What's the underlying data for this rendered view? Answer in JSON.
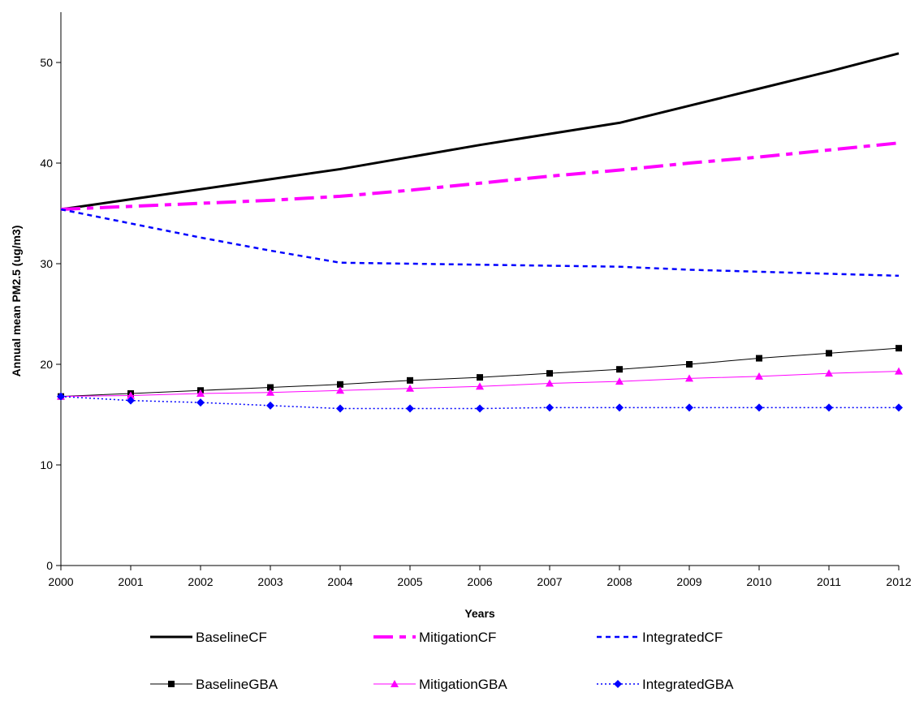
{
  "chart_data": {
    "type": "line",
    "title": "",
    "xlabel": "Years",
    "ylabel": "Annual mean PM2.5 (ug/m3)",
    "x": [
      2000,
      2001,
      2002,
      2003,
      2004,
      2005,
      2006,
      2007,
      2008,
      2009,
      2010,
      2011,
      2012
    ],
    "x_tick_labels": [
      "2000",
      "2001",
      "2002",
      "2003",
      "2004",
      "2005",
      "2006",
      "2007",
      "2008",
      "2009",
      "2010",
      "2011",
      "2012"
    ],
    "ylim": [
      0,
      55
    ],
    "y_ticks": [
      0,
      10,
      20,
      30,
      40,
      50
    ],
    "y_tick_labels": [
      "0",
      "10",
      "20",
      "30",
      "40",
      "50"
    ],
    "grid": false,
    "legend_position": "bottom",
    "series": [
      {
        "name": "BaselineCF",
        "color": "#000000",
        "style": "solid-thick",
        "marker": "none",
        "values": [
          35.4,
          36.4,
          37.4,
          38.4,
          39.4,
          40.6,
          41.8,
          42.9,
          44.0,
          45.7,
          47.4,
          49.1,
          50.9
        ]
      },
      {
        "name": "MitigationCF",
        "color": "#ff00ff",
        "style": "dashdot-thick",
        "marker": "none",
        "values": [
          35.4,
          35.7,
          36.0,
          36.3,
          36.7,
          37.3,
          38.0,
          38.7,
          39.3,
          40.0,
          40.6,
          41.3,
          42.0
        ]
      },
      {
        "name": "IntegratedCF",
        "color": "#0000ff",
        "style": "dashed",
        "marker": "none",
        "values": [
          35.4,
          34.0,
          32.6,
          31.3,
          30.1,
          30.0,
          29.9,
          29.8,
          29.7,
          29.4,
          29.2,
          29.0,
          28.8
        ]
      },
      {
        "name": "BaselineGBA",
        "color": "#000000",
        "style": "solid-thin",
        "marker": "square",
        "values": [
          16.8,
          17.1,
          17.4,
          17.7,
          18.0,
          18.4,
          18.7,
          19.1,
          19.5,
          20.0,
          20.6,
          21.1,
          21.6
        ]
      },
      {
        "name": "MitigationGBA",
        "color": "#ff00ff",
        "style": "solid-thin",
        "marker": "triangle",
        "values": [
          16.8,
          16.9,
          17.1,
          17.2,
          17.4,
          17.6,
          17.8,
          18.1,
          18.3,
          18.6,
          18.8,
          19.1,
          19.3
        ]
      },
      {
        "name": "IntegratedGBA",
        "color": "#0000ff",
        "style": "dotted",
        "marker": "diamond",
        "values": [
          16.8,
          16.4,
          16.2,
          15.9,
          15.6,
          15.6,
          15.6,
          15.7,
          15.7,
          15.7,
          15.7,
          15.7,
          15.7
        ]
      }
    ]
  }
}
